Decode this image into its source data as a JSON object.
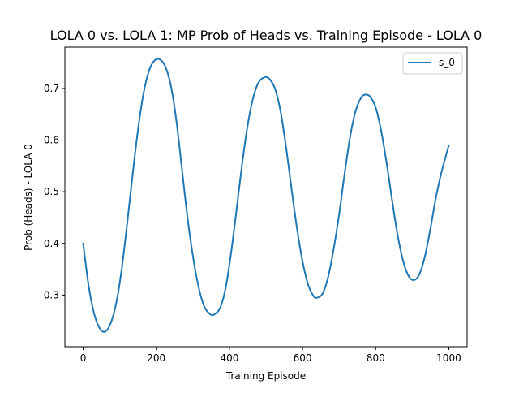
{
  "chart_data": {
    "type": "line",
    "title": "LOLA 0 vs. LOLA 1: MP Prob of Heads vs. Training Episode - LOLA 0",
    "xlabel": "Training Episode",
    "ylabel": "Prob (Heads) - LOLA 0",
    "xlim": [
      -50,
      1050
    ],
    "ylim": [
      0.2,
      0.78
    ],
    "xticks": [
      0,
      200,
      400,
      600,
      800,
      1000
    ],
    "xtick_labels": [
      "0",
      "200",
      "400",
      "600",
      "800",
      "1000"
    ],
    "yticks": [
      0.3,
      0.4,
      0.5,
      0.6,
      0.7
    ],
    "ytick_labels": [
      "0.3",
      "0.4",
      "0.5",
      "0.6",
      "0.7"
    ],
    "grid": false,
    "legend_position": "top-right",
    "series": [
      {
        "name": "s_0",
        "color": "#1f77b4",
        "x": [
          0,
          15,
          30,
          45,
          60,
          75,
          90,
          105,
          120,
          135,
          150,
          165,
          180,
          195,
          210,
          225,
          240,
          255,
          270,
          285,
          300,
          315,
          330,
          345,
          358,
          375,
          390,
          405,
          420,
          435,
          450,
          465,
          480,
          497,
          510,
          525,
          540,
          555,
          570,
          585,
          600,
          615,
          630,
          640,
          655,
          670,
          685,
          700,
          715,
          730,
          745,
          760,
          772,
          785,
          800,
          815,
          830,
          845,
          860,
          875,
          890,
          905,
          920,
          935,
          950,
          965,
          980,
          1000
        ],
        "y": [
          0.4,
          0.318,
          0.264,
          0.236,
          0.229,
          0.245,
          0.283,
          0.348,
          0.436,
          0.531,
          0.62,
          0.69,
          0.734,
          0.754,
          0.756,
          0.742,
          0.705,
          0.637,
          0.545,
          0.452,
          0.376,
          0.318,
          0.28,
          0.264,
          0.262,
          0.276,
          0.315,
          0.384,
          0.468,
          0.555,
          0.629,
          0.682,
          0.712,
          0.722,
          0.718,
          0.699,
          0.655,
          0.586,
          0.505,
          0.428,
          0.365,
          0.321,
          0.298,
          0.295,
          0.303,
          0.335,
          0.389,
          0.456,
          0.535,
          0.606,
          0.656,
          0.682,
          0.688,
          0.684,
          0.663,
          0.618,
          0.555,
          0.483,
          0.416,
          0.366,
          0.337,
          0.329,
          0.341,
          0.376,
          0.43,
          0.49,
          0.538,
          0.59
        ]
      }
    ]
  }
}
